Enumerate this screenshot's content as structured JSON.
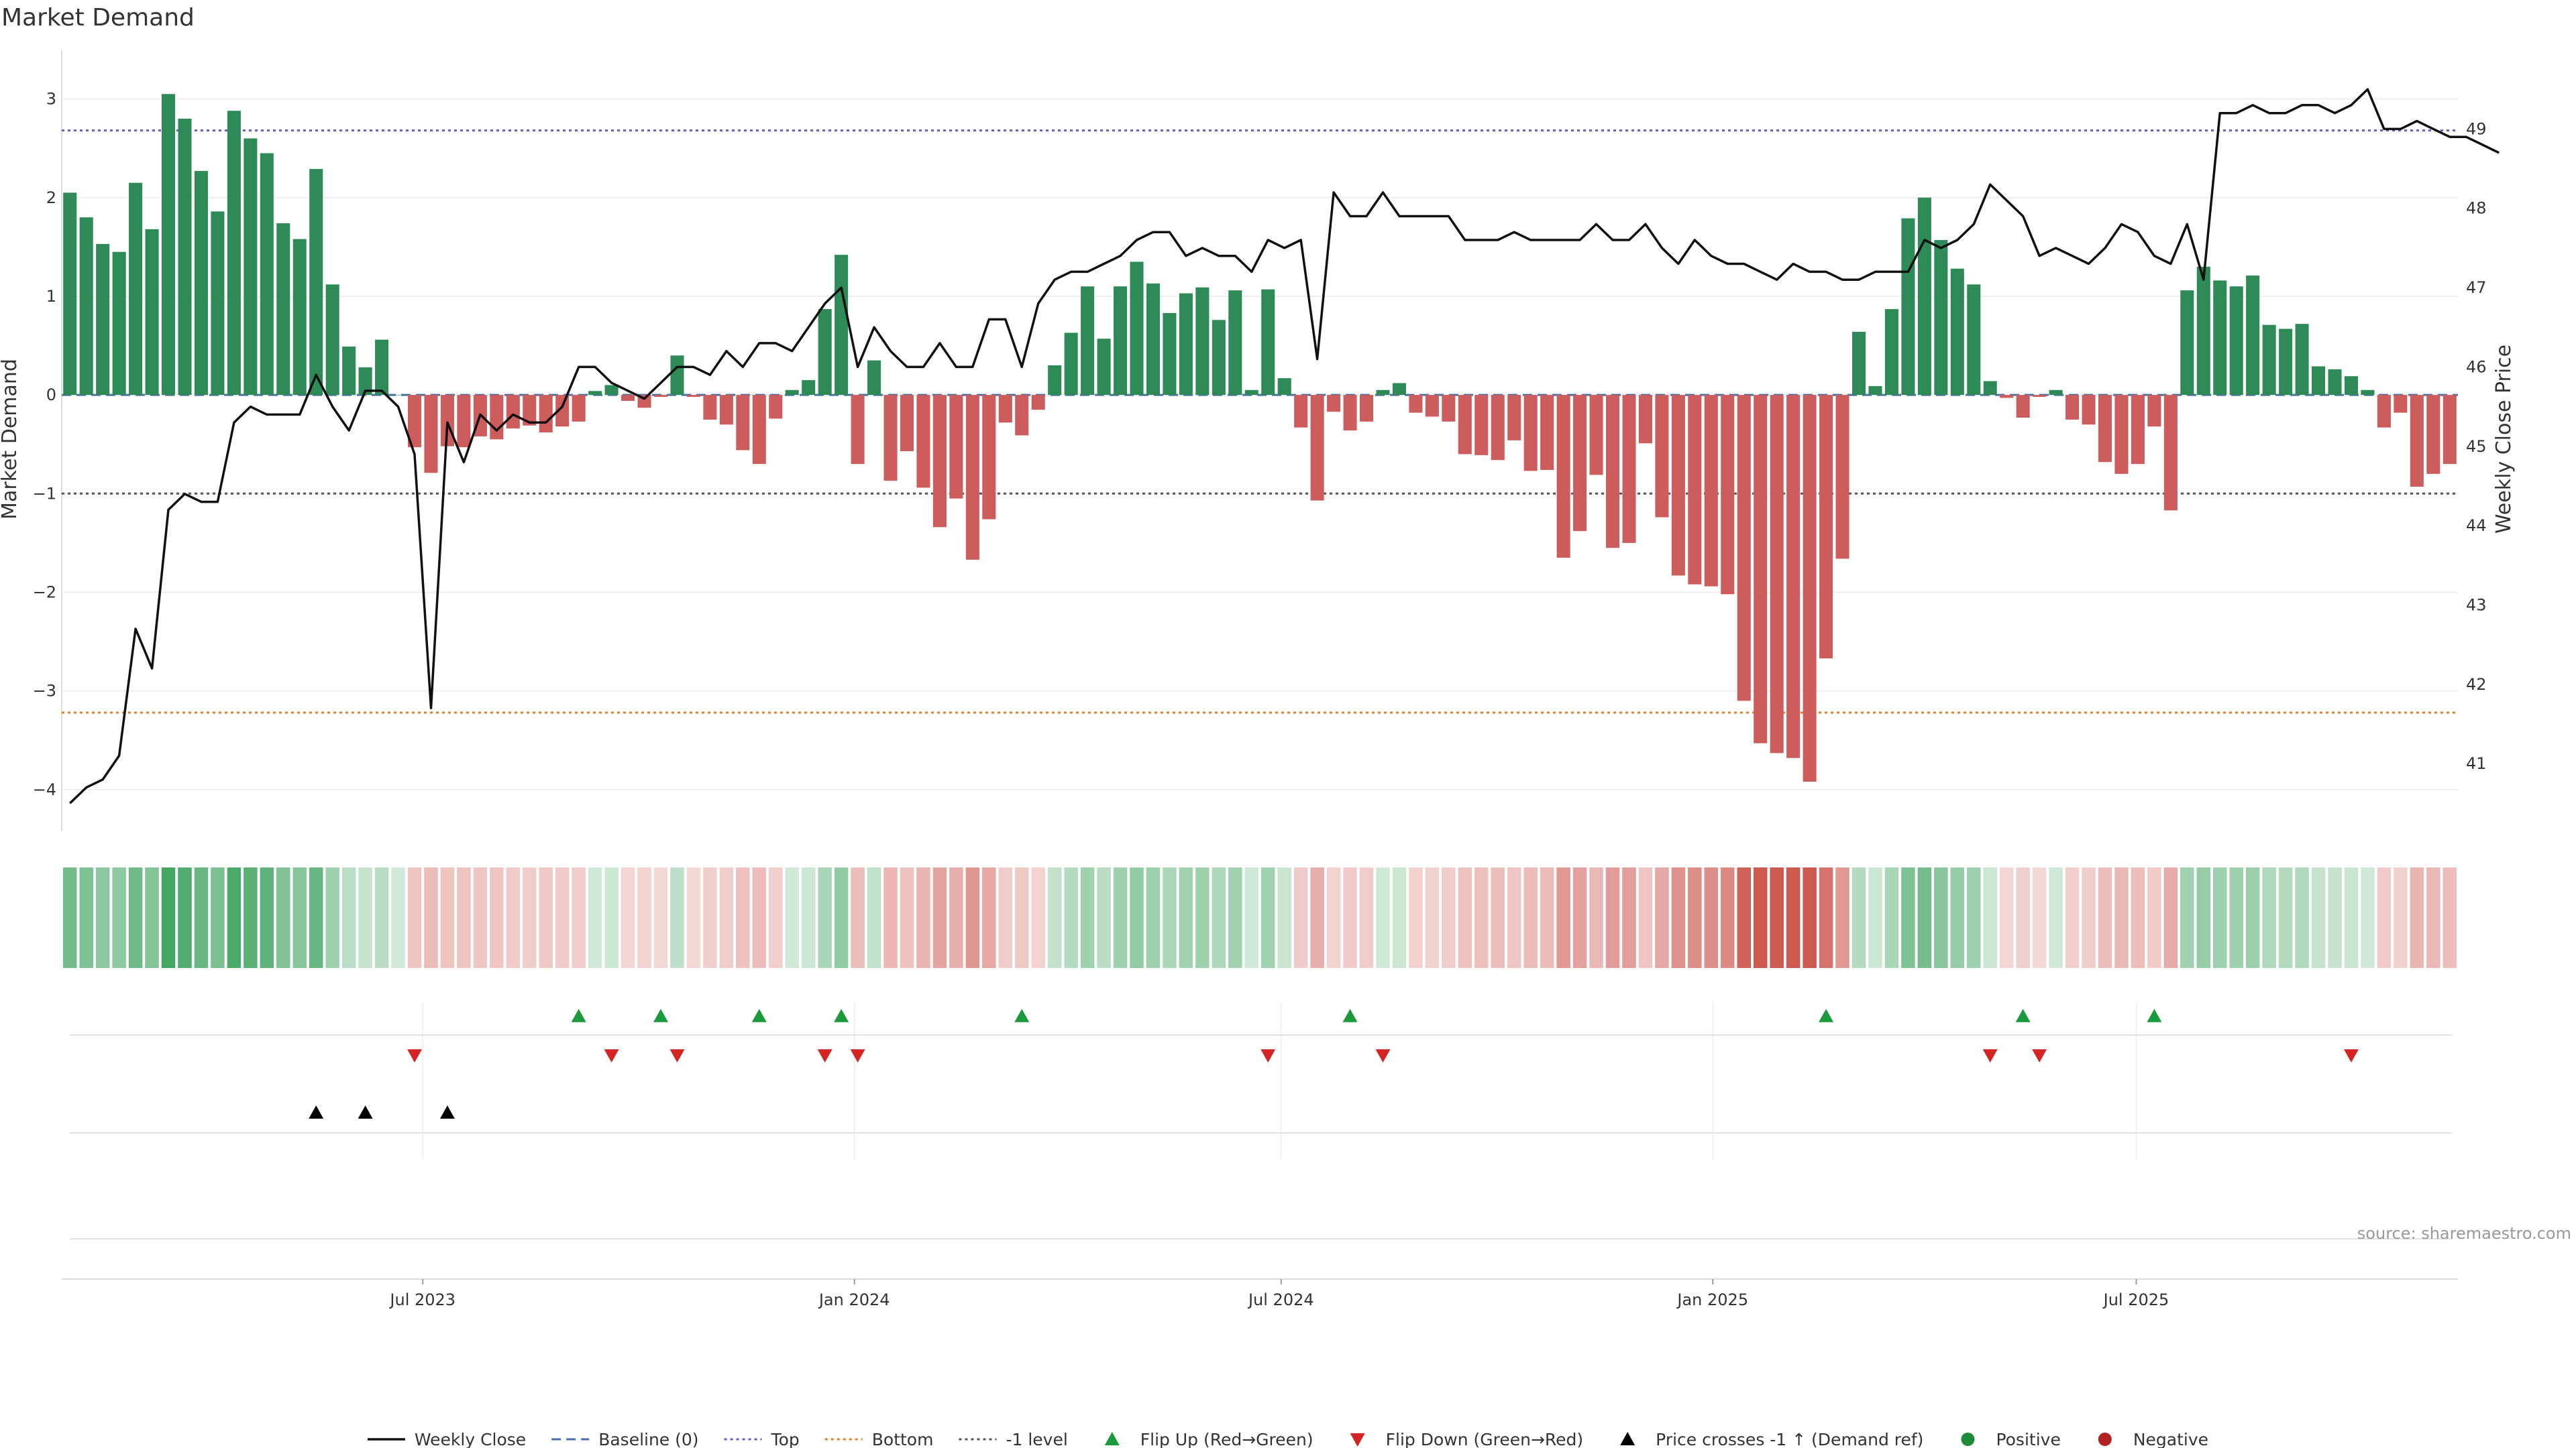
{
  "chart_data": {
    "type": "bar",
    "title": "Market Demand",
    "ylabel": "Market Demand",
    "y2label": "Weekly Close Price",
    "ylim": [
      -4.3,
      3.5
    ],
    "y2lim": [
      40.3,
      50.0
    ],
    "y_ticks": [
      "3",
      "2",
      "1",
      "0",
      "−1",
      "−2",
      "−3",
      "−4"
    ],
    "y_tick_values": [
      3,
      2,
      1,
      0,
      -1,
      -2,
      -3,
      -4
    ],
    "y2_ticks": [
      "49",
      "48",
      "47",
      "46",
      "45",
      "44",
      "43",
      "42",
      "41"
    ],
    "y2_tick_values": [
      49,
      48,
      47,
      46,
      45,
      44,
      43,
      42,
      41
    ],
    "x_ticks": [
      "Jul 2023",
      "Jan 2024",
      "Jul 2024",
      "Jan 2025",
      "Jul 2025"
    ],
    "x_tick_week_index": [
      22,
      48.3,
      74.3,
      100.6,
      126.4
    ],
    "reference_levels": {
      "top": 2.68,
      "bottom": -3.22,
      "minus_one": -1,
      "baseline": 0
    },
    "colors": {
      "positive": "#2e8b57",
      "negative": "#cd5c5c",
      "price": "#111111",
      "top": "#6a5acd",
      "bottom": "#e67e22",
      "minus_one": "#555555",
      "baseline": "#4a6fa5",
      "flip_up": "#1a9a3a",
      "flip_down": "#d42424",
      "cross": "#000000",
      "pos_dot": "#1e8b3a",
      "neg_dot": "#b22222"
    },
    "demand": [
      2.05,
      1.8,
      1.53,
      1.45,
      2.15,
      1.68,
      3.05,
      2.8,
      2.27,
      1.86,
      2.88,
      2.6,
      2.45,
      1.74,
      1.58,
      2.29,
      1.12,
      0.49,
      0.28,
      0.56,
      0,
      -0.53,
      -0.79,
      -0.52,
      -0.53,
      -0.42,
      -0.45,
      -0.34,
      -0.31,
      -0.38,
      -0.32,
      -0.27,
      0.04,
      0.1,
      -0.06,
      -0.13,
      -0.02,
      0.4,
      -0.02,
      -0.25,
      -0.3,
      -0.56,
      -0.7,
      -0.24,
      0.05,
      0.15,
      0.87,
      1.42,
      -0.7,
      0.35,
      -0.87,
      -0.57,
      -0.94,
      -1.34,
      -1.05,
      -1.67,
      -1.26,
      -0.28,
      -0.41,
      -0.15,
      0.3,
      0.63,
      1.1,
      0.57,
      1.1,
      1.35,
      1.13,
      0.83,
      1.03,
      1.09,
      0.76,
      1.06,
      0.05,
      1.07,
      0.17,
      -0.33,
      -1.07,
      -0.17,
      -0.36,
      -0.27,
      0.05,
      0.12,
      -0.18,
      -0.22,
      -0.27,
      -0.6,
      -0.61,
      -0.66,
      -0.46,
      -0.77,
      -0.76,
      -1.65,
      -1.38,
      -0.81,
      -1.55,
      -1.5,
      -0.49,
      -1.24,
      -1.83,
      -1.92,
      -1.94,
      -2.02,
      -3.1,
      -3.53,
      -3.63,
      -3.68,
      -3.92,
      -2.67,
      -1.66,
      0.64,
      0.09,
      0.87,
      1.79,
      2.0,
      1.57,
      1.28,
      1.12,
      0.14,
      -0.03,
      -0.23,
      -0.02,
      0.05,
      -0.25,
      -0.3,
      -0.68,
      -0.8,
      -0.7,
      -0.32,
      -1.17,
      1.06,
      1.3,
      1.16,
      1.1,
      1.21,
      0.71,
      0.67,
      0.72,
      0.29,
      0.26,
      0.19,
      0.05,
      -0.33,
      -0.18,
      -0.93,
      -0.8,
      -0.7
    ],
    "price": [
      40.5,
      40.7,
      40.8,
      41.1,
      42.7,
      42.2,
      44.2,
      44.4,
      44.3,
      44.3,
      45.3,
      45.5,
      45.4,
      45.4,
      45.4,
      45.9,
      45.5,
      45.2,
      45.7,
      45.7,
      45.5,
      44.9,
      41.7,
      45.3,
      44.8,
      45.4,
      45.2,
      45.4,
      45.3,
      45.3,
      45.5,
      46.0,
      46.0,
      45.8,
      45.7,
      45.6,
      45.8,
      46.0,
      46.0,
      45.9,
      46.2,
      46.0,
      46.3,
      46.3,
      46.2,
      46.5,
      46.8,
      47.0,
      46.0,
      46.5,
      46.2,
      46.0,
      46.0,
      46.3,
      46.0,
      46.0,
      46.6,
      46.6,
      46.0,
      46.8,
      47.1,
      47.2,
      47.2,
      47.3,
      47.4,
      47.6,
      47.7,
      47.7,
      47.4,
      47.5,
      47.4,
      47.4,
      47.2,
      47.6,
      47.5,
      47.6,
      46.1,
      48.2,
      47.9,
      47.9,
      48.2,
      47.9,
      47.9,
      47.9,
      47.9,
      47.6,
      47.6,
      47.6,
      47.7,
      47.6,
      47.6,
      47.6,
      47.6,
      47.8,
      47.6,
      47.6,
      47.8,
      47.5,
      47.3,
      47.6,
      47.4,
      47.3,
      47.3,
      47.2,
      47.1,
      47.3,
      47.2,
      47.2,
      47.1,
      47.1,
      47.2,
      47.2,
      47.2,
      47.6,
      47.5,
      47.6,
      47.8,
      48.3,
      48.1,
      47.9,
      47.4,
      47.5,
      47.4,
      47.3,
      47.5,
      47.8,
      47.7,
      47.4,
      47.3,
      47.8,
      47.1,
      49.2,
      49.2,
      49.3,
      49.2,
      49.2,
      49.3,
      49.3,
      49.2,
      49.3,
      49.5,
      49.0,
      49.0,
      49.1,
      49.0,
      48.9,
      48.9,
      48.8,
      48.7
    ],
    "flip_up_week_index": [
      31,
      36,
      42,
      47,
      58,
      78,
      107,
      119,
      127
    ],
    "flip_down_week_index": [
      21,
      33,
      37,
      46,
      48,
      73,
      80,
      117,
      120,
      139
    ],
    "price_cross_week_index": [
      15,
      18,
      23
    ],
    "legend": [
      "Weekly Close",
      "Baseline (0)",
      "Top",
      "Bottom",
      "-1 level",
      "Flip Up (Red→Green)",
      "Flip Down (Green→Red)",
      "Price crosses -1 ↑ (Demand ref)",
      "Positive",
      "Negative"
    ],
    "legend_position": "bottom-center",
    "source": "source: sharemaestro.com"
  }
}
